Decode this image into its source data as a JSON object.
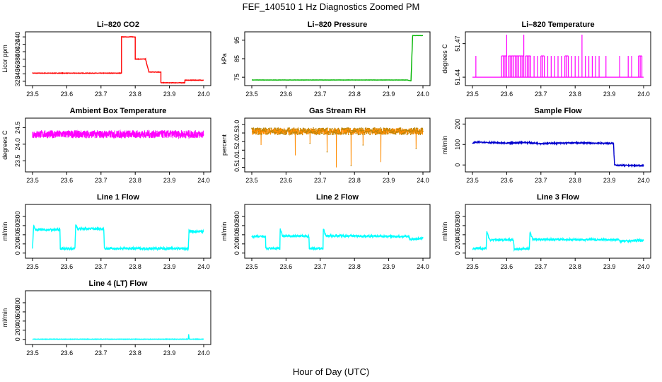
{
  "page": {
    "title": "FEF_140510  1 Hz Diagnostics Zoomed PM",
    "xaxis_title": "Hour of Day (UTC)"
  },
  "chart_data": [
    {
      "id": "li820-co2",
      "type": "line",
      "title": "Li–820 CO2",
      "ylabel": "Licor ppm",
      "color": "#ff0000",
      "noise": 0.6,
      "xlim": [
        23.5,
        24.0
      ],
      "ylim": [
        316,
        446
      ],
      "xticks": [
        "23.5",
        "23.6",
        "23.7",
        "23.8",
        "23.9",
        "24.0"
      ],
      "yticks": [
        {
          "v": 320,
          "label": "320"
        },
        {
          "v": 340,
          "label": "340"
        },
        {
          "v": 360,
          "label": "360"
        },
        {
          "v": 380,
          "label": "380"
        },
        {
          "v": 400,
          "label": "400"
        },
        {
          "v": 420,
          "label": "420"
        },
        {
          "v": 440,
          "label": "440"
        }
      ],
      "series": [
        {
          "x": [
            23.5,
            23.76,
            23.76,
            23.8,
            23.8,
            23.83,
            23.83,
            23.84,
            23.84,
            23.875,
            23.875,
            23.945,
            23.945,
            24.0
          ],
          "y": [
            342,
            342,
            440,
            440,
            380,
            380,
            380,
            345,
            345,
            345,
            316,
            316,
            323,
            323
          ]
        }
      ]
    },
    {
      "id": "li820-pressure",
      "type": "line",
      "title": "Li–820 Pressure",
      "ylabel": "kPa",
      "color": "#00b400",
      "noise": 0.05,
      "xlim": [
        23.5,
        24.0
      ],
      "ylim": [
        72,
        98
      ],
      "xticks": [
        "23.5",
        "23.6",
        "23.7",
        "23.8",
        "23.9",
        "24.0"
      ],
      "yticks": [
        {
          "v": 75,
          "label": "75"
        },
        {
          "v": 85,
          "label": "85"
        },
        {
          "v": 95,
          "label": "95"
        }
      ],
      "series": [
        {
          "x": [
            23.5,
            23.955,
            23.965,
            23.97,
            24.0
          ],
          "y": [
            73.5,
            73.5,
            73.0,
            97.5,
            97.5
          ]
        }
      ]
    },
    {
      "id": "li820-temperature",
      "type": "spikes",
      "title": "Li–820 Temperature",
      "ylabel": "degrees C",
      "color": "#ff00ff",
      "xlim": [
        23.5,
        24.0
      ],
      "ylim": [
        51.435,
        51.478
      ],
      "xticks": [
        "23.5",
        "23.6",
        "23.7",
        "23.8",
        "23.9",
        "24.0"
      ],
      "yticks": [
        {
          "v": 51.44,
          "label": "51.44"
        },
        {
          "v": 51.47,
          "label": "51.47"
        }
      ],
      "baseline": 51.44,
      "level": 51.459,
      "peak": 51.478,
      "peak_x": [
        23.6,
        23.65,
        23.82
      ],
      "series": [
        {
          "name": "spike_x",
          "x": [
            23.51,
            23.585,
            23.59,
            23.595,
            23.6,
            23.605,
            23.61,
            23.615,
            23.62,
            23.625,
            23.63,
            23.635,
            23.64,
            23.645,
            23.65,
            23.655,
            23.66,
            23.665,
            23.67,
            23.68,
            23.69,
            23.7,
            23.705,
            23.71,
            23.72,
            23.73,
            23.74,
            23.75,
            23.76,
            23.77,
            23.775,
            23.78,
            23.79,
            23.8,
            23.81,
            23.82,
            23.83,
            23.84,
            23.85,
            23.86,
            23.87,
            23.89,
            23.93,
            23.955,
            23.965,
            23.985,
            23.99,
            23.995
          ]
        }
      ]
    },
    {
      "id": "ambient-box-temp",
      "type": "line",
      "title": "Ambient Box Temperature",
      "ylabel": "degrees C",
      "color": "#ff00ff",
      "noise": 0.12,
      "dense": true,
      "xlim": [
        23.5,
        24.0
      ],
      "ylim": [
        23.25,
        24.7
      ],
      "xticks": [
        "23.5",
        "23.6",
        "23.7",
        "23.8",
        "23.9",
        "24.0"
      ],
      "yticks": [
        {
          "v": 23.5,
          "label": "23.5"
        },
        {
          "v": 24.0,
          "label": "24.0"
        },
        {
          "v": 24.5,
          "label": "24.5"
        }
      ],
      "series": [
        {
          "x": [
            23.5,
            24.0
          ],
          "y": [
            24.3,
            24.3
          ]
        }
      ]
    },
    {
      "id": "gas-stream-rh",
      "type": "line",
      "title": "Gas Stream RH",
      "ylabel": "percent",
      "color": "#ff8c00",
      "marker": "#b8860b",
      "noise": 0.2,
      "dense": true,
      "xlim": [
        23.5,
        24.0
      ],
      "ylim": [
        0.4,
        3.2
      ],
      "xticks": [
        "23.5",
        "23.6",
        "23.7",
        "23.8",
        "23.9",
        "24.0"
      ],
      "yticks": [
        {
          "v": 0.5,
          "label": "0.5"
        },
        {
          "v": 1.0,
          "label": "1.0"
        },
        {
          "v": 1.5,
          "label": "1.5"
        },
        {
          "v": 2.0,
          "label": "2.0"
        },
        {
          "v": 2.5,
          "label": "2.5"
        },
        {
          "v": 3.0,
          "label": "3.0"
        }
      ],
      "series": [
        {
          "x": [
            23.5,
            24.0
          ],
          "y": [
            2.6,
            2.6
          ]
        }
      ],
      "dips": [
        {
          "x": 23.527,
          "y": 1.8
        },
        {
          "x": 23.627,
          "y": 1.2
        },
        {
          "x": 23.67,
          "y": 1.9
        },
        {
          "x": 23.72,
          "y": 1.4
        },
        {
          "x": 23.747,
          "y": 0.5
        },
        {
          "x": 23.79,
          "y": 0.6
        },
        {
          "x": 23.825,
          "y": 1.8
        },
        {
          "x": 23.877,
          "y": 0.8
        },
        {
          "x": 23.98,
          "y": 1.6
        }
      ]
    },
    {
      "id": "sample-flow",
      "type": "line",
      "title": "Sample Flow",
      "ylabel": "ml/min",
      "color": "#0000cd",
      "noise": 3,
      "xlim": [
        23.5,
        24.0
      ],
      "ylim": [
        -20,
        215
      ],
      "xticks": [
        "23.5",
        "23.6",
        "23.7",
        "23.8",
        "23.9",
        "24.0"
      ],
      "yticks": [
        {
          "v": 0,
          "label": "0"
        },
        {
          "v": 100,
          "label": "100"
        },
        {
          "v": 200,
          "label": "200"
        }
      ],
      "series": [
        {
          "x": [
            23.5,
            23.52,
            23.6,
            23.65,
            23.7,
            23.8,
            23.9,
            23.912,
            23.915,
            23.93,
            24.0
          ],
          "y": [
            108,
            112,
            106,
            110,
            105,
            108,
            106,
            106,
            0,
            -2,
            -3
          ]
        }
      ]
    },
    {
      "id": "line1-flow",
      "type": "line",
      "title": "Line 1 Flow",
      "ylabel": "ml/min",
      "color": "#00ffff",
      "noise": 25,
      "xlim": [
        23.5,
        24.0
      ],
      "ylim": [
        -50,
        1000
      ],
      "xticks": [
        "23.5",
        "23.6",
        "23.7",
        "23.8",
        "23.9",
        "24.0"
      ],
      "yticks": [
        {
          "v": 0,
          "label": "0"
        },
        {
          "v": 200,
          "label": "200"
        },
        {
          "v": 400,
          "label": "400"
        },
        {
          "v": 600,
          "label": "600"
        },
        {
          "v": 800,
          "label": "800"
        }
      ],
      "series": [
        {
          "x": [
            23.5,
            23.503,
            23.508,
            23.58,
            23.581,
            23.624,
            23.626,
            23.632,
            23.708,
            23.71,
            23.955,
            23.957,
            23.962,
            24.0
          ],
          "y": [
            100,
            600,
            510,
            510,
            100,
            100,
            620,
            530,
            530,
            100,
            100,
            480,
            470,
            470
          ]
        }
      ]
    },
    {
      "id": "line2-flow",
      "type": "line",
      "title": "Line 2 Flow",
      "ylabel": "ml/min",
      "color": "#00ffff",
      "noise": 22,
      "xlim": [
        23.5,
        24.0
      ],
      "ylim": [
        -50,
        1000
      ],
      "xticks": [
        "23.5",
        "23.6",
        "23.7",
        "23.8",
        "23.9",
        "24.0"
      ],
      "yticks": [
        {
          "v": 0,
          "label": "0"
        },
        {
          "v": 200,
          "label": "200"
        },
        {
          "v": 400,
          "label": "400"
        },
        {
          "v": 600,
          "label": "600"
        },
        {
          "v": 800,
          "label": "800"
        }
      ],
      "series": [
        {
          "x": [
            23.5,
            23.54,
            23.541,
            23.582,
            23.583,
            23.59,
            23.667,
            23.668,
            23.708,
            23.709,
            23.716,
            23.96,
            23.961,
            24.0
          ],
          "y": [
            360,
            360,
            100,
            100,
            520,
            370,
            370,
            100,
            100,
            540,
            380,
            360,
            300,
            320
          ]
        }
      ]
    },
    {
      "id": "line3-flow",
      "type": "line",
      "title": "Line 3 Flow",
      "ylabel": "ml/min",
      "color": "#00ffff",
      "noise": 22,
      "xlim": [
        23.5,
        24.0
      ],
      "ylim": [
        -50,
        1000
      ],
      "xticks": [
        "23.5",
        "23.6",
        "23.7",
        "23.8",
        "23.9",
        "24.0"
      ],
      "yticks": [
        {
          "v": 0,
          "label": "0"
        },
        {
          "v": 200,
          "label": "200"
        },
        {
          "v": 400,
          "label": "400"
        },
        {
          "v": 600,
          "label": "600"
        },
        {
          "v": 800,
          "label": "800"
        }
      ],
      "series": [
        {
          "x": [
            23.5,
            23.54,
            23.542,
            23.55,
            23.62,
            23.622,
            23.666,
            23.668,
            23.676,
            23.93,
            23.931,
            24.0
          ],
          "y": [
            100,
            100,
            480,
            290,
            290,
            80,
            100,
            450,
            300,
            290,
            260,
            280
          ]
        }
      ]
    },
    {
      "id": "line4-flow",
      "type": "line",
      "title": "Line 4 (LT) Flow",
      "ylabel": "ml/min",
      "color": "#00ffff",
      "noise": 4,
      "xlim": [
        23.5,
        24.0
      ],
      "ylim": [
        -50,
        1000
      ],
      "xticks": [
        "23.5",
        "23.6",
        "23.7",
        "23.8",
        "23.9",
        "24.0"
      ],
      "yticks": [
        {
          "v": 0,
          "label": "0"
        },
        {
          "v": 200,
          "label": "200"
        },
        {
          "v": 400,
          "label": "400"
        },
        {
          "v": 600,
          "label": "600"
        },
        {
          "v": 800,
          "label": "800"
        }
      ],
      "series": [
        {
          "x": [
            23.5,
            23.955,
            23.956,
            23.958,
            24.0
          ],
          "y": [
            5,
            5,
            110,
            5,
            5
          ]
        }
      ]
    }
  ]
}
